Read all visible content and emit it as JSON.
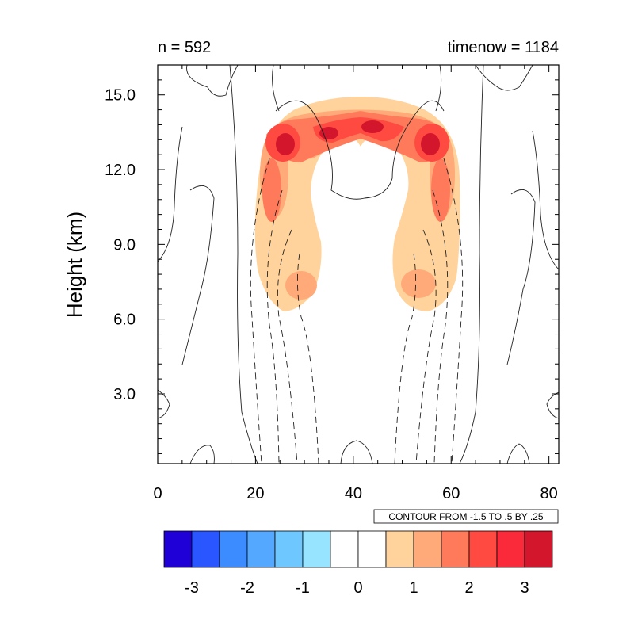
{
  "chart_data": {
    "type": "contour",
    "title_left": "n = 592",
    "title_right": "timenow = 1184",
    "xlabel": "",
    "ylabel": "Height (km)",
    "xlim": [
      0,
      82
    ],
    "ylim": [
      0.2,
      16.2
    ],
    "x_ticks": [
      0,
      20,
      40,
      60,
      80
    ],
    "x_tick_labels": [
      "0",
      "20",
      "40",
      "60",
      "80"
    ],
    "y_ticks": [
      3.0,
      6.0,
      9.0,
      12.0,
      15.0
    ],
    "y_tick_labels": [
      "3.0",
      "6.0",
      "9.0",
      "12.0",
      "15.0"
    ],
    "contour_note": "CONTOUR FROM -1.5 TO .5 BY .25",
    "colorbar": {
      "colors": [
        "#1f00d6",
        "#2a56ff",
        "#3c8cff",
        "#55a8ff",
        "#6ec8ff",
        "#96e4ff",
        "#ffffff",
        "#ffffff",
        "#ffd39b",
        "#ffaa78",
        "#ff7a5a",
        "#ff4a42",
        "#fa2a3a",
        "#d4162c"
      ],
      "tick_labels": [
        "-3",
        "-2",
        "-1",
        "0",
        "1",
        "2",
        "3"
      ]
    }
  }
}
